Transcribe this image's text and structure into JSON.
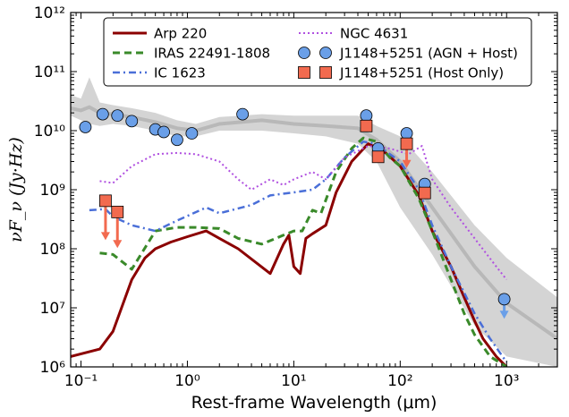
{
  "chart_data": {
    "type": "line",
    "xlabel": "Rest-frame Wavelength",
    "xlabel_unit": "(μm)",
    "ylabel": "νF_ν (Jy·Hz)",
    "xscale": "log",
    "yscale": "log",
    "xlim": [
      0.08,
      3000
    ],
    "ylim": [
      1000000.0,
      1000000000000.0
    ],
    "x_ticks": [
      {
        "value": 0.1,
        "label": "10⁻¹"
      },
      {
        "value": 1,
        "label": "10⁰"
      },
      {
        "value": 10,
        "label": "10¹"
      },
      {
        "value": 100,
        "label": "10²"
      },
      {
        "value": 1000,
        "label": "10³"
      }
    ],
    "y_ticks": [
      {
        "value": 1000000.0,
        "label": "10⁶"
      },
      {
        "value": 10000000.0,
        "label": "10⁷"
      },
      {
        "value": 100000000.0,
        "label": "10⁸"
      },
      {
        "value": 1000000000.0,
        "label": "10⁹"
      },
      {
        "value": 10000000000.0,
        "label": "10¹⁰"
      },
      {
        "value": 100000000000.0,
        "label": "10¹¹"
      },
      {
        "value": 1000000000000.0,
        "label": "10¹²"
      }
    ],
    "legend_position": "top",
    "template_band": {
      "color": "#cfcfcf",
      "median_color": "#b8b8b8",
      "points": [
        {
          "x": 0.08,
          "lo": 18000000000.0,
          "mid": 24000000000.0,
          "hi": 40000000000.0
        },
        {
          "x": 0.1,
          "lo": 15000000000.0,
          "mid": 22000000000.0,
          "hi": 35000000000.0
        },
        {
          "x": 0.12,
          "lo": 13000000000.0,
          "mid": 25000000000.0,
          "hi": 80000000000.0
        },
        {
          "x": 0.15,
          "lo": 12000000000.0,
          "mid": 20000000000.0,
          "hi": 30000000000.0
        },
        {
          "x": 0.2,
          "lo": 13000000000.0,
          "mid": 19000000000.0,
          "hi": 27000000000.0
        },
        {
          "x": 0.3,
          "lo": 12000000000.0,
          "mid": 17000000000.0,
          "hi": 24000000000.0
        },
        {
          "x": 0.5,
          "lo": 10000000000.0,
          "mid": 14000000000.0,
          "hi": 20000000000.0
        },
        {
          "x": 0.8,
          "lo": 8000000000.0,
          "mid": 11000000000.0,
          "hi": 15000000000.0
        },
        {
          "x": 1.2,
          "lo": 8000000000.0,
          "mid": 10000000000.0,
          "hi": 13000000000.0
        },
        {
          "x": 2,
          "lo": 10000000000.0,
          "mid": 13000000000.0,
          "hi": 17000000000.0
        },
        {
          "x": 5,
          "lo": 10000000000.0,
          "mid": 15000000000.0,
          "hi": 19000000000.0
        },
        {
          "x": 10,
          "lo": 9000000000.0,
          "mid": 13000000000.0,
          "hi": 18000000000.0
        },
        {
          "x": 20,
          "lo": 8000000000.0,
          "mid": 12000000000.0,
          "hi": 18000000000.0
        },
        {
          "x": 40,
          "lo": 6000000000.0,
          "mid": 11000000000.0,
          "hi": 18000000000.0
        },
        {
          "x": 60,
          "lo": 3000000000.0,
          "mid": 7000000000.0,
          "hi": 12000000000.0
        },
        {
          "x": 100,
          "lo": 500000000.0,
          "mid": 3000000000.0,
          "hi": 8000000000.0
        },
        {
          "x": 200,
          "lo": 80000000.0,
          "mid": 500000000.0,
          "hi": 2000000000.0
        },
        {
          "x": 500,
          "lo": 5000000.0,
          "mid": 50000000.0,
          "hi": 250000000.0
        },
        {
          "x": 1000,
          "lo": 1500000.0,
          "mid": 12000000.0,
          "hi": 70000000.0
        },
        {
          "x": 3000,
          "lo": 1000000.0,
          "mid": 3000000.0,
          "hi": 15000000.0
        }
      ]
    },
    "series": [
      {
        "name": "Arp 220",
        "color": "#8b0000",
        "style": "solid",
        "width": 3,
        "points": [
          [
            0.08,
            1500000.0
          ],
          [
            0.15,
            2000000.0
          ],
          [
            0.2,
            4000000.0
          ],
          [
            0.3,
            30000000.0
          ],
          [
            0.4,
            70000000.0
          ],
          [
            0.5,
            100000000.0
          ],
          [
            0.7,
            130000000.0
          ],
          [
            1.0,
            160000000.0
          ],
          [
            1.5,
            200000000.0
          ],
          [
            2.0,
            150000000.0
          ],
          [
            3.0,
            100000000.0
          ],
          [
            6.0,
            38000000.0
          ],
          [
            8.0,
            120000000.0
          ],
          [
            9.0,
            170000000.0
          ],
          [
            10.0,
            50000000.0
          ],
          [
            11.5,
            38000000.0
          ],
          [
            13.0,
            150000000.0
          ],
          [
            15.0,
            180000000.0
          ],
          [
            20.0,
            250000000.0
          ],
          [
            25.0,
            900000000.0
          ],
          [
            35.0,
            3000000000.0
          ],
          [
            50.0,
            6000000000.0
          ],
          [
            70.0,
            4500000000.0
          ],
          [
            100.0,
            2500000000.0
          ],
          [
            150.0,
            800000000.0
          ],
          [
            200.0,
            200000000.0
          ],
          [
            300.0,
            50000000.0
          ],
          [
            400.0,
            15000000.0
          ],
          [
            500.0,
            6000000.0
          ],
          [
            600.0,
            3000000.0
          ],
          [
            800.0,
            1500000.0
          ],
          [
            1000.0,
            1000000.0
          ]
        ]
      },
      {
        "name": "IRAS 22491-1808",
        "color": "#3a8a2a",
        "style": "dashed",
        "width": 3,
        "points": [
          [
            0.15,
            85000000.0
          ],
          [
            0.2,
            80000000.0
          ],
          [
            0.3,
            45000000.0
          ],
          [
            0.5,
            200000000.0
          ],
          [
            0.8,
            230000000.0
          ],
          [
            1.2,
            230000000.0
          ],
          [
            2.0,
            220000000.0
          ],
          [
            3.0,
            150000000.0
          ],
          [
            5.0,
            120000000.0
          ],
          [
            8.0,
            170000000.0
          ],
          [
            10.0,
            200000000.0
          ],
          [
            12.0,
            200000000.0
          ],
          [
            15.0,
            450000000.0
          ],
          [
            18.0,
            400000000.0
          ],
          [
            25.0,
            2000000000.0
          ],
          [
            35.0,
            5000000000.0
          ],
          [
            45.0,
            7500000000.0
          ],
          [
            60.0,
            6500000000.0
          ],
          [
            80.0,
            3500000000.0
          ],
          [
            100.0,
            2500000000.0
          ],
          [
            150.0,
            700000000.0
          ],
          [
            200.0,
            200000000.0
          ],
          [
            300.0,
            30000000.0
          ],
          [
            400.0,
            8000000.0
          ],
          [
            500.0,
            3500000.0
          ],
          [
            700.0,
            1500000.0
          ],
          [
            1000.0,
            1000000.0
          ]
        ]
      },
      {
        "name": "IC 1623",
        "color": "#4a6fd8",
        "style": "dashdot",
        "width": 2.5,
        "points": [
          [
            0.12,
            450000000.0
          ],
          [
            0.17,
            470000000.0
          ],
          [
            0.2,
            350000000.0
          ],
          [
            0.3,
            250000000.0
          ],
          [
            0.5,
            200000000.0
          ],
          [
            0.8,
            300000000.0
          ],
          [
            1.5,
            500000000.0
          ],
          [
            2.0,
            400000000.0
          ],
          [
            4.0,
            550000000.0
          ],
          [
            6.0,
            800000000.0
          ],
          [
            10.0,
            900000000.0
          ],
          [
            15.0,
            1000000000.0
          ],
          [
            20.0,
            1500000000.0
          ],
          [
            30.0,
            3500000000.0
          ],
          [
            45.0,
            6500000000.0
          ],
          [
            60.0,
            6000000000.0
          ],
          [
            80.0,
            4000000000.0
          ],
          [
            100.0,
            3000000000.0
          ],
          [
            150.0,
            1000000000.0
          ],
          [
            200.0,
            250000000.0
          ],
          [
            300.0,
            50000000.0
          ],
          [
            400.0,
            18000000.0
          ],
          [
            500.0,
            8000000.0
          ],
          [
            700.0,
            3000000.0
          ],
          [
            1000.0,
            1200000.0
          ]
        ]
      },
      {
        "name": "NGC 4631",
        "color": "#b050e0",
        "style": "dotted",
        "width": 2,
        "points": [
          [
            0.15,
            1400000000.0
          ],
          [
            0.2,
            1300000000.0
          ],
          [
            0.3,
            2500000000.0
          ],
          [
            0.5,
            4000000000.0
          ],
          [
            0.8,
            4200000000.0
          ],
          [
            1.2,
            4000000000.0
          ],
          [
            2.0,
            3000000000.0
          ],
          [
            3.0,
            1500000000.0
          ],
          [
            4.0,
            1000000000.0
          ],
          [
            6.0,
            1500000000.0
          ],
          [
            8.0,
            1200000000.0
          ],
          [
            10.0,
            1500000000.0
          ],
          [
            15.0,
            2000000000.0
          ],
          [
            20.0,
            1500000000.0
          ],
          [
            30.0,
            3500000000.0
          ],
          [
            50.0,
            5500000000.0
          ],
          [
            80.0,
            5000000000.0
          ],
          [
            120.0,
            4000000000.0
          ],
          [
            160.0,
            5500000000.0
          ],
          [
            200.0,
            1500000000.0
          ],
          [
            300.0,
            500000000.0
          ],
          [
            500.0,
            150000000.0
          ],
          [
            800.0,
            50000000.0
          ],
          [
            1000.0,
            30000000.0
          ]
        ]
      }
    ],
    "points": [
      {
        "name": "J1148+5251 (AGN + Host)",
        "color": "#6a9fe8",
        "marker": "circle",
        "data": [
          [
            0.11,
            11500000000.0
          ],
          [
            0.16,
            19000000000.0
          ],
          [
            0.22,
            18000000000.0
          ],
          [
            0.3,
            14500000000.0
          ],
          [
            0.5,
            10500000000.0
          ],
          [
            0.6,
            9500000000.0
          ],
          [
            0.8,
            7000000000.0
          ],
          [
            1.1,
            9000000000.0
          ],
          [
            3.3,
            19000000000.0
          ],
          [
            48,
            18000000000.0
          ],
          [
            62,
            5000000000.0
          ],
          [
            115,
            9000000000.0
          ],
          [
            170,
            1250000000.0
          ],
          [
            950,
            14000000.0
          ]
        ],
        "upper_limits": [
          {
            "x": 950,
            "y": 14000000.0,
            "to": 7000000.0
          }
        ]
      },
      {
        "name": "J1148+5251 (Host Only)",
        "color": "#f26a4f",
        "marker": "square",
        "data": [
          [
            0.17,
            650000000.0
          ],
          [
            0.22,
            420000000.0
          ],
          [
            48,
            12000000000.0
          ],
          [
            62,
            3600000000.0
          ],
          [
            115,
            6000000000.0
          ],
          [
            170,
            880000000.0
          ]
        ],
        "upper_limits": [
          {
            "x": 0.17,
            "y": 650000000.0,
            "to": 150000000.0
          },
          {
            "x": 0.22,
            "y": 420000000.0,
            "to": 110000000.0
          },
          {
            "x": 115,
            "y": 6000000000.0,
            "to": 2500000000.0
          }
        ]
      }
    ]
  }
}
